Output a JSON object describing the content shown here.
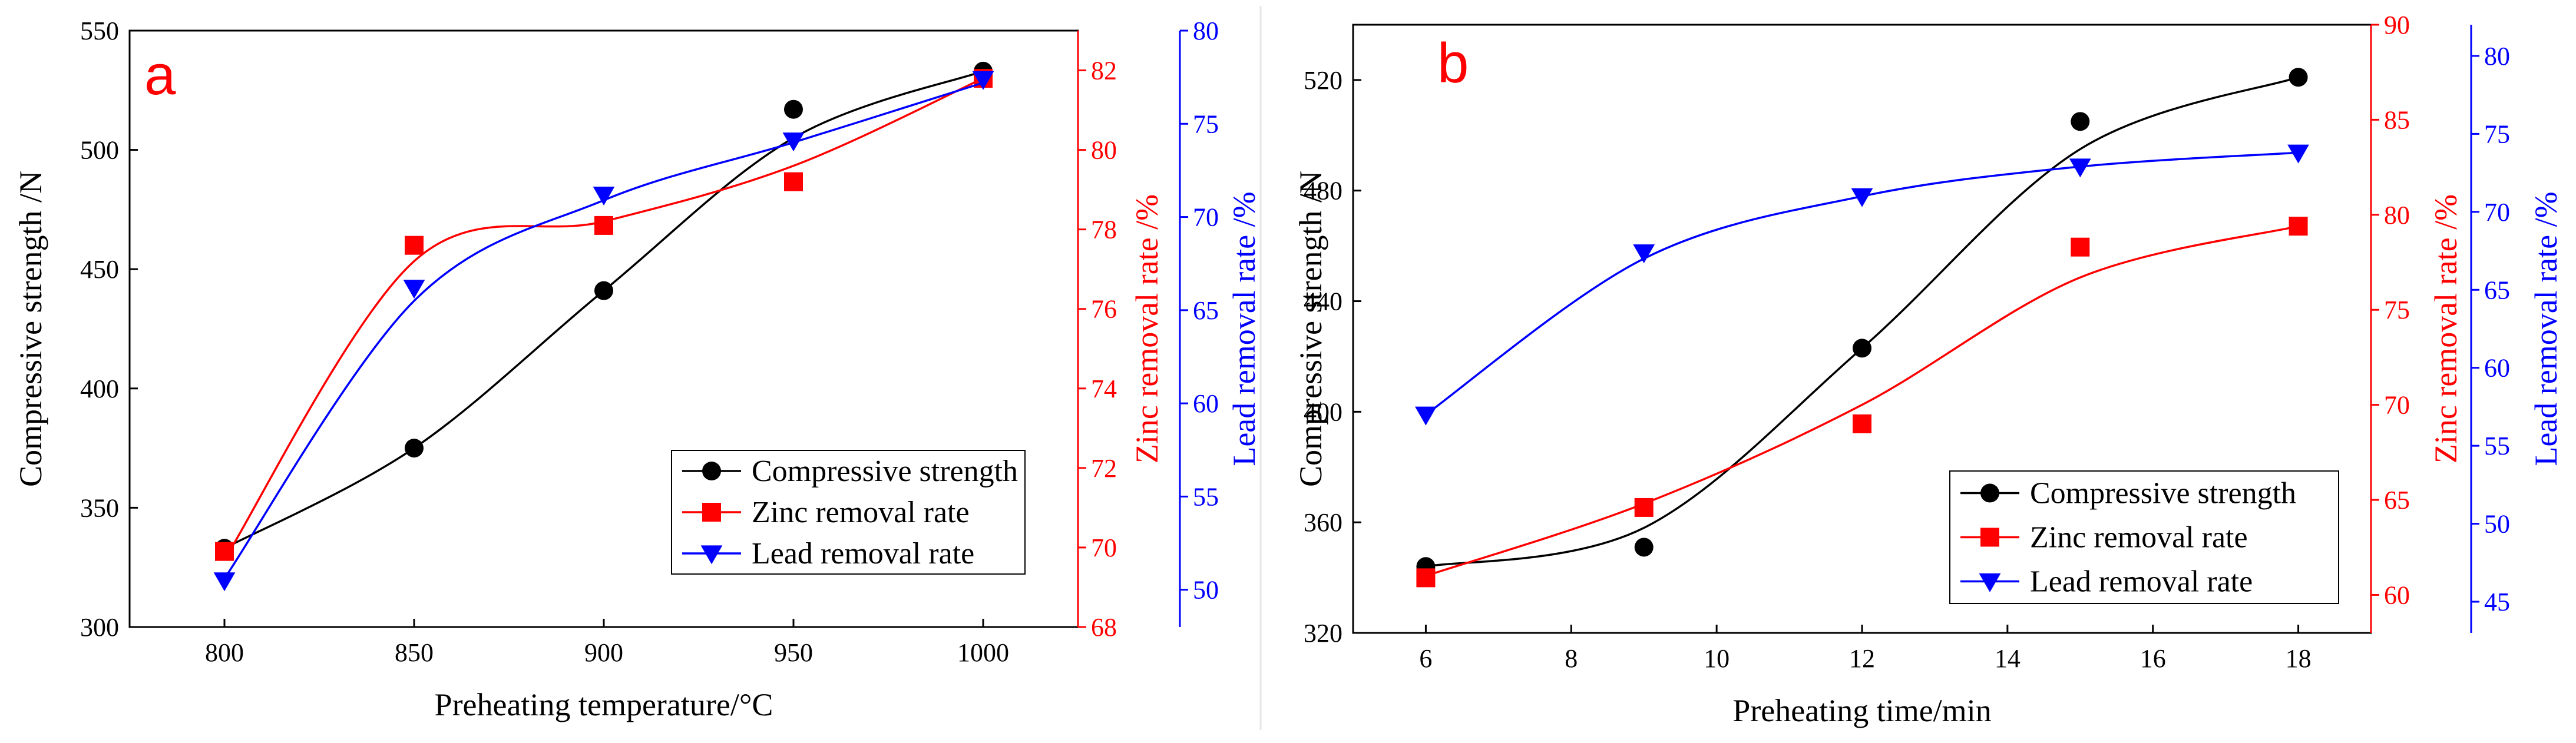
{
  "colors": {
    "compressive": "#000000",
    "zinc": "#ff0000",
    "lead": "#0000ff",
    "panel_label": "#ff0000",
    "axis": "#000000"
  },
  "chart_data": [
    {
      "type": "scatter",
      "panel_label": "a",
      "xlabel": "Preheating temperature/°C",
      "xlim": [
        775,
        1025
      ],
      "xticks": [
        800,
        850,
        900,
        950,
        1000
      ],
      "x": [
        800,
        850,
        900,
        950,
        1000
      ],
      "y_axes": {
        "left": {
          "label": "Compressive strength /N",
          "lim": [
            300,
            550
          ],
          "ticks": [
            300,
            350,
            400,
            450,
            500,
            550
          ],
          "color": "#000000"
        },
        "right1": {
          "label": "Zinc removal rate /%",
          "lim": [
            68,
            83
          ],
          "ticks": [
            68,
            70,
            72,
            74,
            76,
            78,
            80,
            82
          ],
          "color": "#ff0000"
        },
        "right2": {
          "label": "Lead removal rate /%",
          "lim": [
            48,
            80
          ],
          "ticks": [
            50,
            55,
            60,
            65,
            70,
            75,
            80
          ],
          "color": "#0000ff"
        }
      },
      "series": [
        {
          "name": "Compressive strength",
          "axis": "left",
          "marker": "circle",
          "color": "#000000",
          "values": [
            333,
            375,
            441,
            517,
            533
          ],
          "fit": [
            333,
            375,
            441,
            505,
            533
          ]
        },
        {
          "name": "Zinc removal rate",
          "axis": "right1",
          "marker": "square",
          "color": "#ff0000",
          "values": [
            69.9,
            77.6,
            78.1,
            79.2,
            81.8
          ],
          "fit": [
            69.7,
            77.2,
            78.2,
            79.6,
            81.8
          ]
        },
        {
          "name": "Lead removal rate",
          "axis": "right2",
          "marker": "triangle-down",
          "color": "#0000ff",
          "values": [
            50.5,
            66.2,
            71.2,
            74.1,
            77.4
          ],
          "fit": [
            50.6,
            65.5,
            70.9,
            74.0,
            77.2
          ]
        }
      ],
      "legend": {
        "position": "bottom-right",
        "entries": [
          "Compressive strength",
          "Zinc removal rate",
          "Lead removal rate"
        ]
      }
    },
    {
      "type": "scatter",
      "panel_label": "b",
      "xlabel": "Preheating time/min",
      "xlim": [
        5,
        19
      ],
      "xticks": [
        6,
        8,
        10,
        12,
        14,
        16,
        18
      ],
      "x": [
        6,
        9,
        12,
        15,
        18
      ],
      "y_axes": {
        "left": {
          "label": "Compressive strength /N",
          "lim": [
            320,
            540
          ],
          "ticks": [
            320,
            360,
            400,
            440,
            480,
            520
          ],
          "color": "#000000"
        },
        "right1": {
          "label": "Zinc removal rate /%",
          "lim": [
            58,
            90
          ],
          "ticks": [
            60,
            65,
            70,
            75,
            80,
            85,
            90
          ],
          "color": "#ff0000"
        },
        "right2": {
          "label": "Lead removal rate /%",
          "lim": [
            43,
            82
          ],
          "ticks": [
            45,
            50,
            55,
            60,
            65,
            70,
            75,
            80
          ],
          "color": "#0000ff"
        }
      },
      "series": [
        {
          "name": "Compressive strength",
          "axis": "left",
          "marker": "circle",
          "color": "#000000",
          "values": [
            344,
            351,
            423,
            505,
            521
          ],
          "fit": [
            344,
            358,
            423,
            495,
            521
          ]
        },
        {
          "name": "Zinc removal rate",
          "axis": "right1",
          "marker": "square",
          "color": "#ff0000",
          "values": [
            60.9,
            64.6,
            69.0,
            78.3,
            79.4
          ],
          "fit": [
            61.0,
            64.8,
            70.0,
            76.7,
            79.4
          ]
        },
        {
          "name": "Lead removal rate",
          "axis": "right2",
          "marker": "triangle-down",
          "color": "#0000ff",
          "values": [
            57.0,
            67.4,
            71.0,
            72.9,
            73.8
          ],
          "fit": [
            57.0,
            67.0,
            71.0,
            72.9,
            73.8
          ]
        }
      ],
      "legend": {
        "position": "bottom-right",
        "entries": [
          "Compressive strength",
          "Zinc removal rate",
          "Lead removal rate"
        ]
      }
    }
  ]
}
